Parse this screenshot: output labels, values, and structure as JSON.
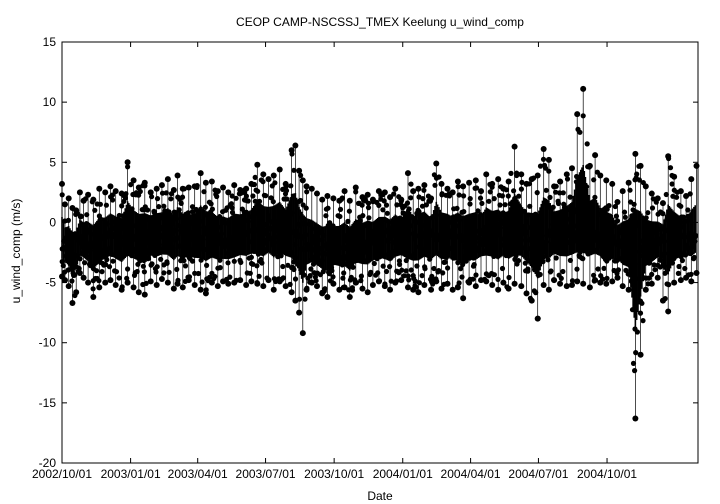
{
  "chart_data": {
    "type": "scatter",
    "title": "CEOP CAMP-NSCSSJ_TMEX Keelung  u_wind_comp",
    "xlabel": "Date",
    "ylabel": "u_wind_comp (m/s)",
    "ylim": [
      -20,
      15
    ],
    "yticks": [
      15,
      10,
      5,
      0,
      -5,
      -10,
      -15,
      -20
    ],
    "xlim": [
      "2002-10-01",
      "2005-01-31"
    ],
    "xticks": [
      {
        "date": "2002-10-01",
        "label": "2002/10/01"
      },
      {
        "date": "2003-01-01",
        "label": "2003/01/01"
      },
      {
        "date": "2003-04-01",
        "label": "2003/04/01"
      },
      {
        "date": "2003-07-01",
        "label": "2003/07/01"
      },
      {
        "date": "2003-10-01",
        "label": "2003/10/01"
      },
      {
        "date": "2004-01-01",
        "label": "2004/01/01"
      },
      {
        "date": "2004-04-01",
        "label": "2004/04/01"
      },
      {
        "date": "2004-07-01",
        "label": "2004/07/01"
      },
      {
        "date": "2004-10-01",
        "label": "2004/10/01"
      }
    ],
    "grid": false,
    "legend": "none",
    "marker_color": "#000000",
    "series": [
      {
        "x": [
          "2002-10-01",
          "2002-10-05",
          "2002-10-10",
          "2002-10-15",
          "2002-10-20",
          "2002-10-25",
          "2002-10-30",
          "2002-11-05",
          "2002-11-12",
          "2002-11-20",
          "2002-11-28",
          "2002-12-05",
          "2002-12-12",
          "2002-12-20",
          "2002-12-28",
          "2003-01-05",
          "2003-01-12",
          "2003-01-20",
          "2003-01-28",
          "2003-02-05",
          "2003-02-12",
          "2003-02-20",
          "2003-02-28",
          "2003-03-05",
          "2003-03-12",
          "2003-03-20",
          "2003-03-28",
          "2003-04-05",
          "2003-04-12",
          "2003-04-20",
          "2003-04-28",
          "2003-05-05",
          "2003-05-12",
          "2003-05-20",
          "2003-05-28",
          "2003-06-05",
          "2003-06-12",
          "2003-06-20",
          "2003-06-28",
          "2003-07-05",
          "2003-07-12",
          "2003-07-20",
          "2003-07-28",
          "2003-08-05",
          "2003-08-10",
          "2003-08-15",
          "2003-08-20",
          "2003-08-25",
          "2003-09-01",
          "2003-09-08",
          "2003-09-15",
          "2003-09-22",
          "2003-09-30",
          "2003-10-08",
          "2003-10-15",
          "2003-10-22",
          "2003-10-30",
          "2003-11-08",
          "2003-11-15",
          "2003-11-22",
          "2003-11-30",
          "2003-12-08",
          "2003-12-15",
          "2003-12-22",
          "2003-12-30",
          "2004-01-08",
          "2004-01-15",
          "2004-01-22",
          "2004-01-30",
          "2004-02-08",
          "2004-02-15",
          "2004-02-22",
          "2004-03-01",
          "2004-03-08",
          "2004-03-15",
          "2004-03-22",
          "2004-03-30",
          "2004-04-08",
          "2004-04-15",
          "2004-04-22",
          "2004-04-30",
          "2004-05-08",
          "2004-05-15",
          "2004-05-22",
          "2004-05-30",
          "2004-06-08",
          "2004-06-15",
          "2004-06-22",
          "2004-06-30",
          "2004-07-08",
          "2004-07-15",
          "2004-07-22",
          "2004-07-30",
          "2004-08-08",
          "2004-08-15",
          "2004-08-22",
          "2004-08-30",
          "2004-09-08",
          "2004-09-15",
          "2004-09-22",
          "2004-09-30",
          "2004-10-08",
          "2004-10-15",
          "2004-10-22",
          "2004-10-30",
          "2004-11-08",
          "2004-11-15",
          "2004-11-22",
          "2004-11-30",
          "2004-12-08",
          "2004-12-15",
          "2004-12-22",
          "2004-12-30",
          "2005-01-08",
          "2005-01-15",
          "2005-01-22",
          "2005-01-29"
        ],
        "y_max": [
          3.2,
          1.5,
          2.0,
          1.2,
          1.0,
          2.5,
          1.8,
          2.3,
          1.9,
          2.8,
          2.5,
          3.0,
          2.6,
          2.4,
          5.0,
          3.5,
          2.9,
          3.3,
          2.5,
          2.8,
          3.1,
          3.6,
          2.7,
          3.9,
          2.8,
          2.9,
          3.0,
          4.1,
          3.3,
          3.4,
          2.6,
          2.9,
          2.5,
          3.1,
          2.7,
          2.8,
          3.2,
          4.8,
          4.0,
          3.6,
          3.9,
          4.4,
          3.2,
          6.0,
          6.4,
          4.3,
          3.5,
          3.0,
          2.8,
          2.4,
          1.9,
          2.2,
          2.0,
          1.8,
          2.6,
          1.8,
          2.9,
          2.1,
          2.3,
          1.9,
          2.6,
          2.5,
          2.1,
          2.8,
          1.9,
          4.1,
          2.6,
          2.8,
          3.1,
          2.0,
          4.9,
          3.2,
          2.8,
          2.5,
          3.4,
          3.0,
          3.3,
          3.5,
          2.6,
          4.0,
          3.2,
          3.6,
          2.8,
          3.4,
          6.3,
          4.0,
          3.2,
          3.6,
          3.9,
          6.1,
          5.2,
          3.0,
          3.4,
          4.0,
          4.5,
          9.0,
          11.1,
          4.7,
          5.6,
          3.9,
          3.5,
          3.2,
          1.7,
          2.6,
          3.3,
          5.7,
          4.7,
          3.0,
          2.4,
          2.0,
          1.6,
          5.5,
          3.8,
          2.6,
          2.2,
          3.6,
          4.7
        ],
        "y_min": [
          -4.5,
          -4.8,
          -5.3,
          -6.7,
          -5.8,
          -4.2,
          -4.6,
          -5.0,
          -6.2,
          -5.4,
          -5.0,
          -4.8,
          -5.2,
          -5.6,
          -5.0,
          -5.4,
          -5.8,
          -6.0,
          -4.9,
          -5.2,
          -4.7,
          -5.0,
          -5.5,
          -5.1,
          -5.4,
          -4.8,
          -5.2,
          -5.6,
          -5.9,
          -5.0,
          -5.3,
          -4.9,
          -5.1,
          -5.0,
          -4.8,
          -5.2,
          -4.9,
          -5.1,
          -5.3,
          -4.8,
          -5.6,
          -4.9,
          -5.3,
          -5.8,
          -6.5,
          -7.5,
          -9.2,
          -5.6,
          -5.0,
          -5.3,
          -5.9,
          -6.2,
          -5.1,
          -5.6,
          -5.4,
          -6.2,
          -5.0,
          -5.5,
          -5.8,
          -5.2,
          -4.9,
          -5.3,
          -5.6,
          -5.0,
          -4.8,
          -5.4,
          -5.6,
          -5.8,
          -5.2,
          -5.6,
          -4.9,
          -5.5,
          -5.1,
          -5.6,
          -5.4,
          -6.3,
          -5.0,
          -5.3,
          -4.8,
          -4.9,
          -5.2,
          -5.6,
          -5.0,
          -5.5,
          -5.1,
          -5.3,
          -5.9,
          -6.5,
          -8.0,
          -5.2,
          -5.6,
          -4.8,
          -5.1,
          -5.3,
          -5.2,
          -4.9,
          -5.1,
          -5.4,
          -4.8,
          -5.0,
          -5.1,
          -4.9,
          -4.6,
          -5.3,
          -5.6,
          -16.3,
          -11.0,
          -5.6,
          -5.1,
          -4.6,
          -6.5,
          -7.4,
          -5.0,
          -4.8,
          -4.6,
          -4.9,
          -4.2
        ],
        "y_center": [
          -1.8,
          -2.0,
          -2.2,
          -2.5,
          -2.2,
          -1.6,
          -1.5,
          -1.8,
          -2.0,
          -1.6,
          -1.3,
          -1.1,
          -1.2,
          -1.4,
          -0.9,
          -1.0,
          -1.1,
          -1.3,
          -1.0,
          -0.9,
          -1.0,
          -0.8,
          -1.2,
          -0.9,
          -1.0,
          -1.2,
          -1.1,
          -0.8,
          -1.0,
          -1.2,
          -1.3,
          -1.5,
          -1.4,
          -1.2,
          -1.0,
          -0.8,
          -0.7,
          -0.6,
          -0.8,
          -0.6,
          -0.7,
          -0.5,
          -0.7,
          -0.6,
          -0.8,
          -1.2,
          -1.6,
          -1.8,
          -1.9,
          -2.1,
          -2.2,
          -2.3,
          -2.2,
          -2.0,
          -2.1,
          -2.2,
          -1.9,
          -1.8,
          -1.6,
          -1.5,
          -1.3,
          -1.2,
          -1.3,
          -1.1,
          -1.0,
          -1.1,
          -1.2,
          -1.0,
          -0.9,
          -1.0,
          -0.9,
          -1.1,
          -1.0,
          -1.2,
          -1.3,
          -1.5,
          -1.4,
          -1.3,
          -1.2,
          -1.0,
          -0.9,
          -1.0,
          -0.9,
          -1.0,
          -0.8,
          -0.7,
          -1.1,
          -1.5,
          -1.9,
          -1.2,
          -0.9,
          -0.8,
          -0.9,
          -0.8,
          -0.6,
          -0.5,
          -0.4,
          -0.6,
          -0.8,
          -1.0,
          -1.2,
          -1.5,
          -1.8,
          -2.0,
          -2.2,
          -2.6,
          -2.2,
          -2.0,
          -1.8,
          -1.5,
          -1.6,
          -1.8,
          -1.5,
          -1.3,
          -1.2,
          -1.1,
          -1.0
        ]
      }
    ]
  }
}
